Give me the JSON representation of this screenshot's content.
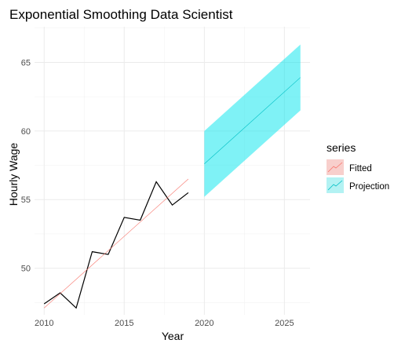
{
  "chart_data": {
    "type": "line",
    "title": "Exponential Smoothing Data Scientist",
    "xlabel": "Year",
    "ylabel": "Hourly Wage",
    "xlim": [
      2009.4,
      2026.6
    ],
    "ylim": [
      46.6,
      67.6
    ],
    "x_ticks": [
      2010,
      2015,
      2020,
      2025
    ],
    "y_ticks": [
      50,
      55,
      60,
      65
    ],
    "x_minor_ticks": [
      2012.5,
      2017.5,
      2022.5
    ],
    "y_minor_ticks": [
      47.5,
      52.5,
      57.5,
      62.5,
      67.5
    ],
    "grid": true,
    "legend": {
      "title": "series",
      "position": "right",
      "entries": [
        {
          "label": "Fitted",
          "color": "#F8766D",
          "fill": "#F8CFCC"
        },
        {
          "label": "Projection",
          "color": "#00BFC4",
          "fill": "#B3F2F3"
        }
      ]
    },
    "actual": {
      "color": "#000000",
      "x": [
        2010,
        2011,
        2012,
        2013,
        2014,
        2015,
        2016,
        2017,
        2018,
        2019
      ],
      "y": [
        47.4,
        48.2,
        47.1,
        51.2,
        51.0,
        53.7,
        53.5,
        56.3,
        54.6,
        55.5
      ]
    },
    "series": [
      {
        "name": "Fitted",
        "color": "#F8766D",
        "x": [
          2010,
          2019
        ],
        "y": [
          47.1,
          56.5
        ]
      },
      {
        "name": "Projection",
        "color": "#00BFC4",
        "band_color": "#00E5EE",
        "band_opacity": 0.5,
        "x": [
          2020,
          2026
        ],
        "y": [
          57.6,
          63.9
        ],
        "lower": [
          55.2,
          61.5
        ],
        "upper": [
          60.0,
          66.3
        ]
      }
    ]
  }
}
